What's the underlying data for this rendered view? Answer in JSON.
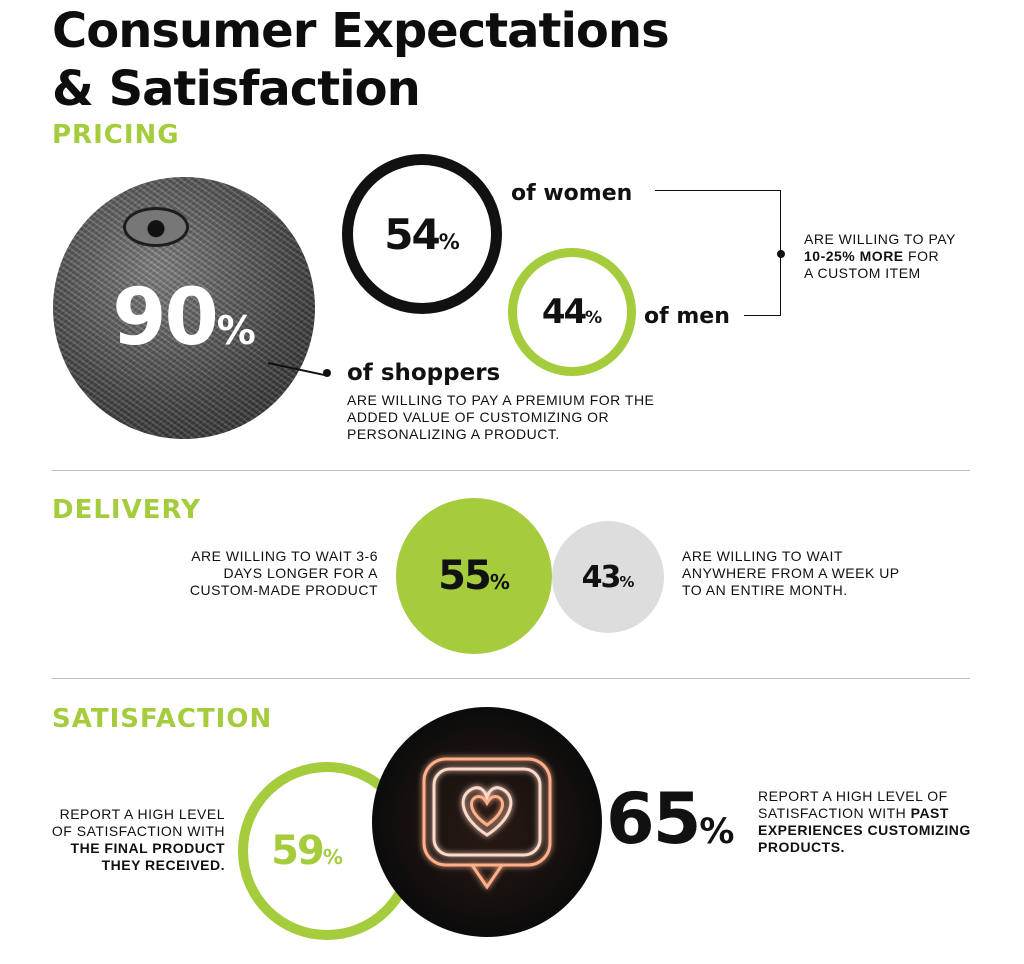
{
  "title_line1": "Consumer Expectations",
  "title_line2": "& Satisfaction",
  "colors": {
    "accent": "#a4cc3c",
    "dark": "#111111",
    "gray": "#dddddd"
  },
  "pricing": {
    "heading": "PRICING",
    "shoppers": {
      "value": "90",
      "unit": "%",
      "label": "of shoppers",
      "desc": "ARE WILLING TO PAY A PREMIUM FOR THE ADDED VALUE OF CUSTOMIZING OR PERSONALIZING A PRODUCT."
    },
    "women": {
      "value": "54",
      "unit": "%",
      "label": "of women"
    },
    "men": {
      "value": "44",
      "unit": "%",
      "label": "of men"
    },
    "callout_a": "ARE WILLING TO PAY",
    "callout_b": "10-25% MORE",
    "callout_c": " FOR",
    "callout_d": "A CUSTOM ITEM"
  },
  "delivery": {
    "heading": "DELIVERY",
    "left": {
      "value": "55",
      "unit": "%",
      "desc": "ARE WILLING TO WAIT 3-6 DAYS LONGER FOR A CUSTOM-MADE PRODUCT"
    },
    "right": {
      "value": "43",
      "unit": "%",
      "desc": "ARE WILLING TO WAIT ANYWHERE FROM A WEEK UP TO AN ENTIRE MONTH."
    }
  },
  "satisfaction": {
    "heading": "SATISFACTION",
    "left": {
      "value": "59",
      "unit": "%",
      "desc_a": "REPORT A HIGH LEVEL OF SATISFACTION WITH ",
      "desc_b": "THE FINAL PRODUCT THEY RECEIVED."
    },
    "right": {
      "value": "65",
      "unit": "%",
      "desc_a": "REPORT A HIGH LEVEL OF SATISFACTION WITH ",
      "desc_b": "PAST EXPERIENCES CUSTOMIZING PRODUCTS."
    }
  }
}
